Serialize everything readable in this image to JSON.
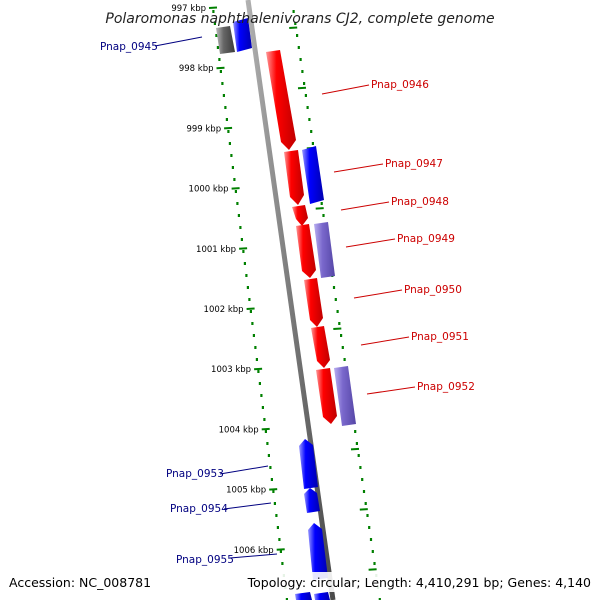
{
  "title": "Polaromonas naphthalenivorans CJ2, complete genome",
  "footer": {
    "accession": "Accession: NC_008781",
    "topology": "Topology: circular; Length: 4,410,291 bp; Genes: 4,140"
  },
  "colors": {
    "backbone": "#808080",
    "minus_strand": "#0000ee",
    "minus_label": "#000080",
    "plus_strand": "#ee0000",
    "plus_label": "#cc0000",
    "rna_or_pseudo": "#7a68cc",
    "scale_dots": "#008000"
  },
  "scale_ticks": [
    {
      "label": "997 kbp",
      "kbp": 997
    },
    {
      "label": "998 kbp",
      "kbp": 998
    },
    {
      "label": "999 kbp",
      "kbp": 999
    },
    {
      "label": "1000 kbp",
      "kbp": 1000
    },
    {
      "label": "1001 kbp",
      "kbp": 1001
    },
    {
      "label": "1002 kbp",
      "kbp": 1002
    },
    {
      "label": "1003 kbp",
      "kbp": 1003
    },
    {
      "label": "1004 kbp",
      "kbp": 1004
    },
    {
      "label": "1005 kbp",
      "kbp": 1005
    },
    {
      "label": "1006 kbp",
      "kbp": 1006
    }
  ],
  "gene_labels": [
    {
      "name": "Pnap_0945",
      "strand": "minus"
    },
    {
      "name": "Pnap_0946",
      "strand": "plus"
    },
    {
      "name": "Pnap_0947",
      "strand": "plus"
    },
    {
      "name": "Pnap_0948",
      "strand": "plus"
    },
    {
      "name": "Pnap_0949",
      "strand": "plus"
    },
    {
      "name": "Pnap_0950",
      "strand": "plus"
    },
    {
      "name": "Pnap_0951",
      "strand": "plus"
    },
    {
      "name": "Pnap_0952",
      "strand": "plus"
    },
    {
      "name": "Pnap_0953",
      "strand": "minus"
    },
    {
      "name": "Pnap_0954",
      "strand": "minus"
    },
    {
      "name": "Pnap_0955",
      "strand": "minus"
    }
  ]
}
